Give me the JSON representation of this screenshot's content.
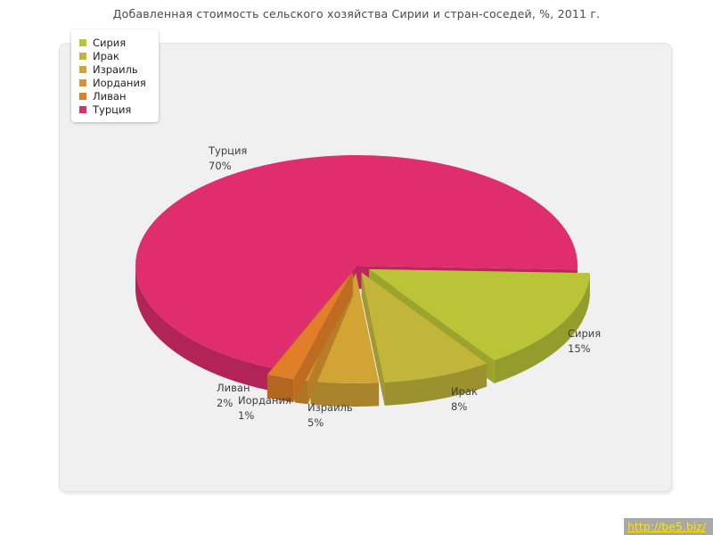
{
  "title": "Добавленная стоимость сельского хозяйства Сирии и стран-соседей, %, 2011 г.",
  "chart_data": {
    "type": "pie",
    "title": "Добавленная стоимость сельского хозяйства Сирии и стран-соседей, %, 2011 г.",
    "unit": "%",
    "legend_position": "top-left",
    "direction": "clockwise",
    "start_angle_deg": -2,
    "series": [
      {
        "key": "syria",
        "label": "Сирия",
        "value": 15,
        "pct_label": "15%",
        "color": "#b9c437",
        "exploded": true
      },
      {
        "key": "iraq",
        "label": "Ирак",
        "value": 8,
        "pct_label": "8%",
        "color": "#c2b53a",
        "exploded": true
      },
      {
        "key": "israel",
        "label": "Израиль",
        "value": 5,
        "pct_label": "5%",
        "color": "#d2a434",
        "exploded": true
      },
      {
        "key": "jordan",
        "label": "Иордания",
        "value": 1,
        "pct_label": "1%",
        "color": "#d8932e",
        "exploded": true
      },
      {
        "key": "lebanon",
        "label": "Ливан",
        "value": 2,
        "pct_label": "2%",
        "color": "#e07f27",
        "exploded": true
      },
      {
        "key": "turkey",
        "label": "Турция",
        "value": 70,
        "pct_label": "70%",
        "color": "#df2d6d",
        "exploded": false
      }
    ]
  },
  "watermark": {
    "text": "http://be5.biz/",
    "bg": "#a8a8a8",
    "color": "#ffe400"
  }
}
